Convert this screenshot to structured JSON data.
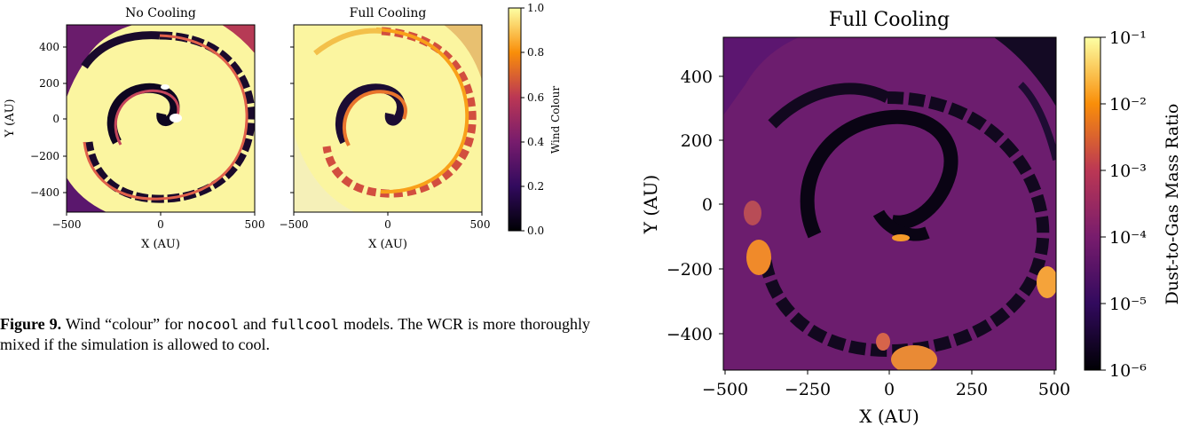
{
  "left_figure": {
    "panels": [
      {
        "title": "No Cooling",
        "xticks": [
          "−500",
          "0",
          "500"
        ],
        "yticks": [
          "400",
          "200",
          "0",
          "−200",
          "−400"
        ],
        "xlabel": "X (AU)",
        "ylabel": "Y (AU)"
      },
      {
        "title": "Full Cooling",
        "xticks": [
          "−500",
          "0",
          "500"
        ],
        "xlabel": "X (AU)"
      }
    ],
    "colorbar": {
      "label": "Wind Colour",
      "ticks": [
        "1.0",
        "0.8",
        "0.6",
        "0.4",
        "0.2",
        "0.0"
      ]
    }
  },
  "caption": {
    "label": "Figure 9.",
    "text_before": " Wind “colour” for ",
    "code1": "nocool",
    "text_middle": " and ",
    "code2": "fullcool",
    "text_after": " models. The WCR is more thoroughly mixed if the simulation is allowed to cool."
  },
  "right_figure": {
    "title": "Full Cooling",
    "xticks": [
      "−500",
      "−250",
      "0",
      "250",
      "500"
    ],
    "yticks": [
      "400",
      "200",
      "0",
      "−200",
      "−400"
    ],
    "xlabel": "X (AU)",
    "ylabel": "Y (AU)",
    "colorbar": {
      "label": "Dust-to-Gas Mass Ratio",
      "ticks": [
        "10⁻¹",
        "10⁻²",
        "10⁻³",
        "10⁻⁴",
        "10⁻⁵",
        "10⁻⁶"
      ]
    }
  },
  "colors": {
    "inferno_dark": "#000004",
    "inferno_purple": "#56106e",
    "inferno_red": "#bb3754",
    "inferno_orange": "#f98e09",
    "inferno_light": "#fcffa4"
  }
}
